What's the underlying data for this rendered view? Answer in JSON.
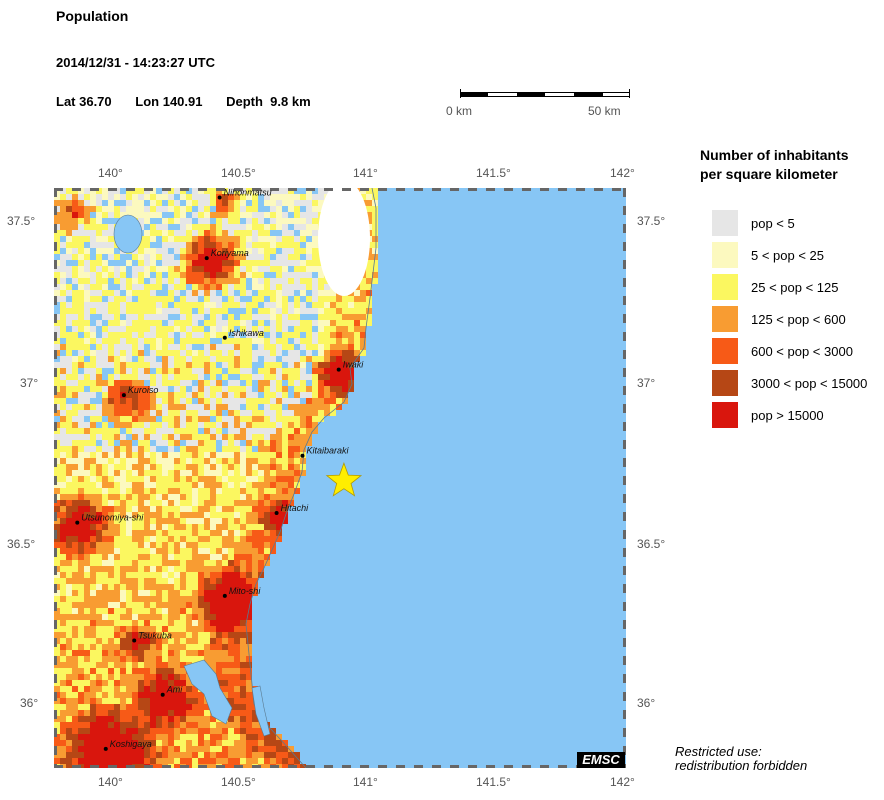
{
  "header": {
    "title": "Population",
    "datetime": "2014/12/31 - 14:23:27 UTC",
    "lat_label": "Lat 36.70",
    "lon_label": "Lon 140.91",
    "depth_label": "Depth  9.8 km"
  },
  "scalebar": {
    "left_label": "0 km",
    "right_label": "50 km"
  },
  "axes": {
    "lon_ticks": [
      "140°",
      "140.5°",
      "141°",
      "141.5°",
      "142°"
    ],
    "lat_ticks": [
      "37.5°",
      "37°",
      "36.5°",
      "36°"
    ]
  },
  "epicenter": {
    "lat": 36.7,
    "lon": 140.91,
    "color": "#ffee00"
  },
  "colors": {
    "sea": "#87c6f5",
    "land_low": "#e6e6e6"
  },
  "cities": [
    {
      "name": "Nihonmatsu",
      "lat": 37.59,
      "lon": 140.43
    },
    {
      "name": "Koriyama",
      "lat": 37.4,
      "lon": 140.38
    },
    {
      "name": "Ishikawa",
      "lat": 37.15,
      "lon": 140.45
    },
    {
      "name": "Iwaki",
      "lat": 37.05,
      "lon": 140.89
    },
    {
      "name": "Kuroiso",
      "lat": 36.97,
      "lon": 140.06
    },
    {
      "name": "Kitaibaraki",
      "lat": 36.78,
      "lon": 140.75
    },
    {
      "name": "Hitachi",
      "lat": 36.6,
      "lon": 140.65
    },
    {
      "name": "Utsunomiya-shi",
      "lat": 36.57,
      "lon": 139.88
    },
    {
      "name": "Mito-shi",
      "lat": 36.34,
      "lon": 140.45
    },
    {
      "name": "Tsukuba",
      "lat": 36.2,
      "lon": 140.1
    },
    {
      "name": "Ami",
      "lat": 36.03,
      "lon": 140.21
    },
    {
      "name": "Koshigaya",
      "lat": 35.86,
      "lon": 139.99
    }
  ],
  "legend": {
    "title_line1": "Number of inhabitants",
    "title_line2": "per square kilometer",
    "items": [
      {
        "label": "pop < 5",
        "color": "#e6e6e6"
      },
      {
        "label": "5 < pop < 25",
        "color": "#fcf9bf"
      },
      {
        "label": "25 < pop < 125",
        "color": "#fbf760"
      },
      {
        "label": "125 < pop < 600",
        "color": "#f89c32"
      },
      {
        "label": "600 < pop < 3000",
        "color": "#f75a17"
      },
      {
        "label": "3000 < pop < 15000",
        "color": "#b64715"
      },
      {
        "label": "pop > 15000",
        "color": "#d9160d"
      }
    ]
  },
  "logo": "EMSC",
  "restriction": {
    "line1": "Restricted use:",
    "line2": "redistribution forbidden"
  }
}
